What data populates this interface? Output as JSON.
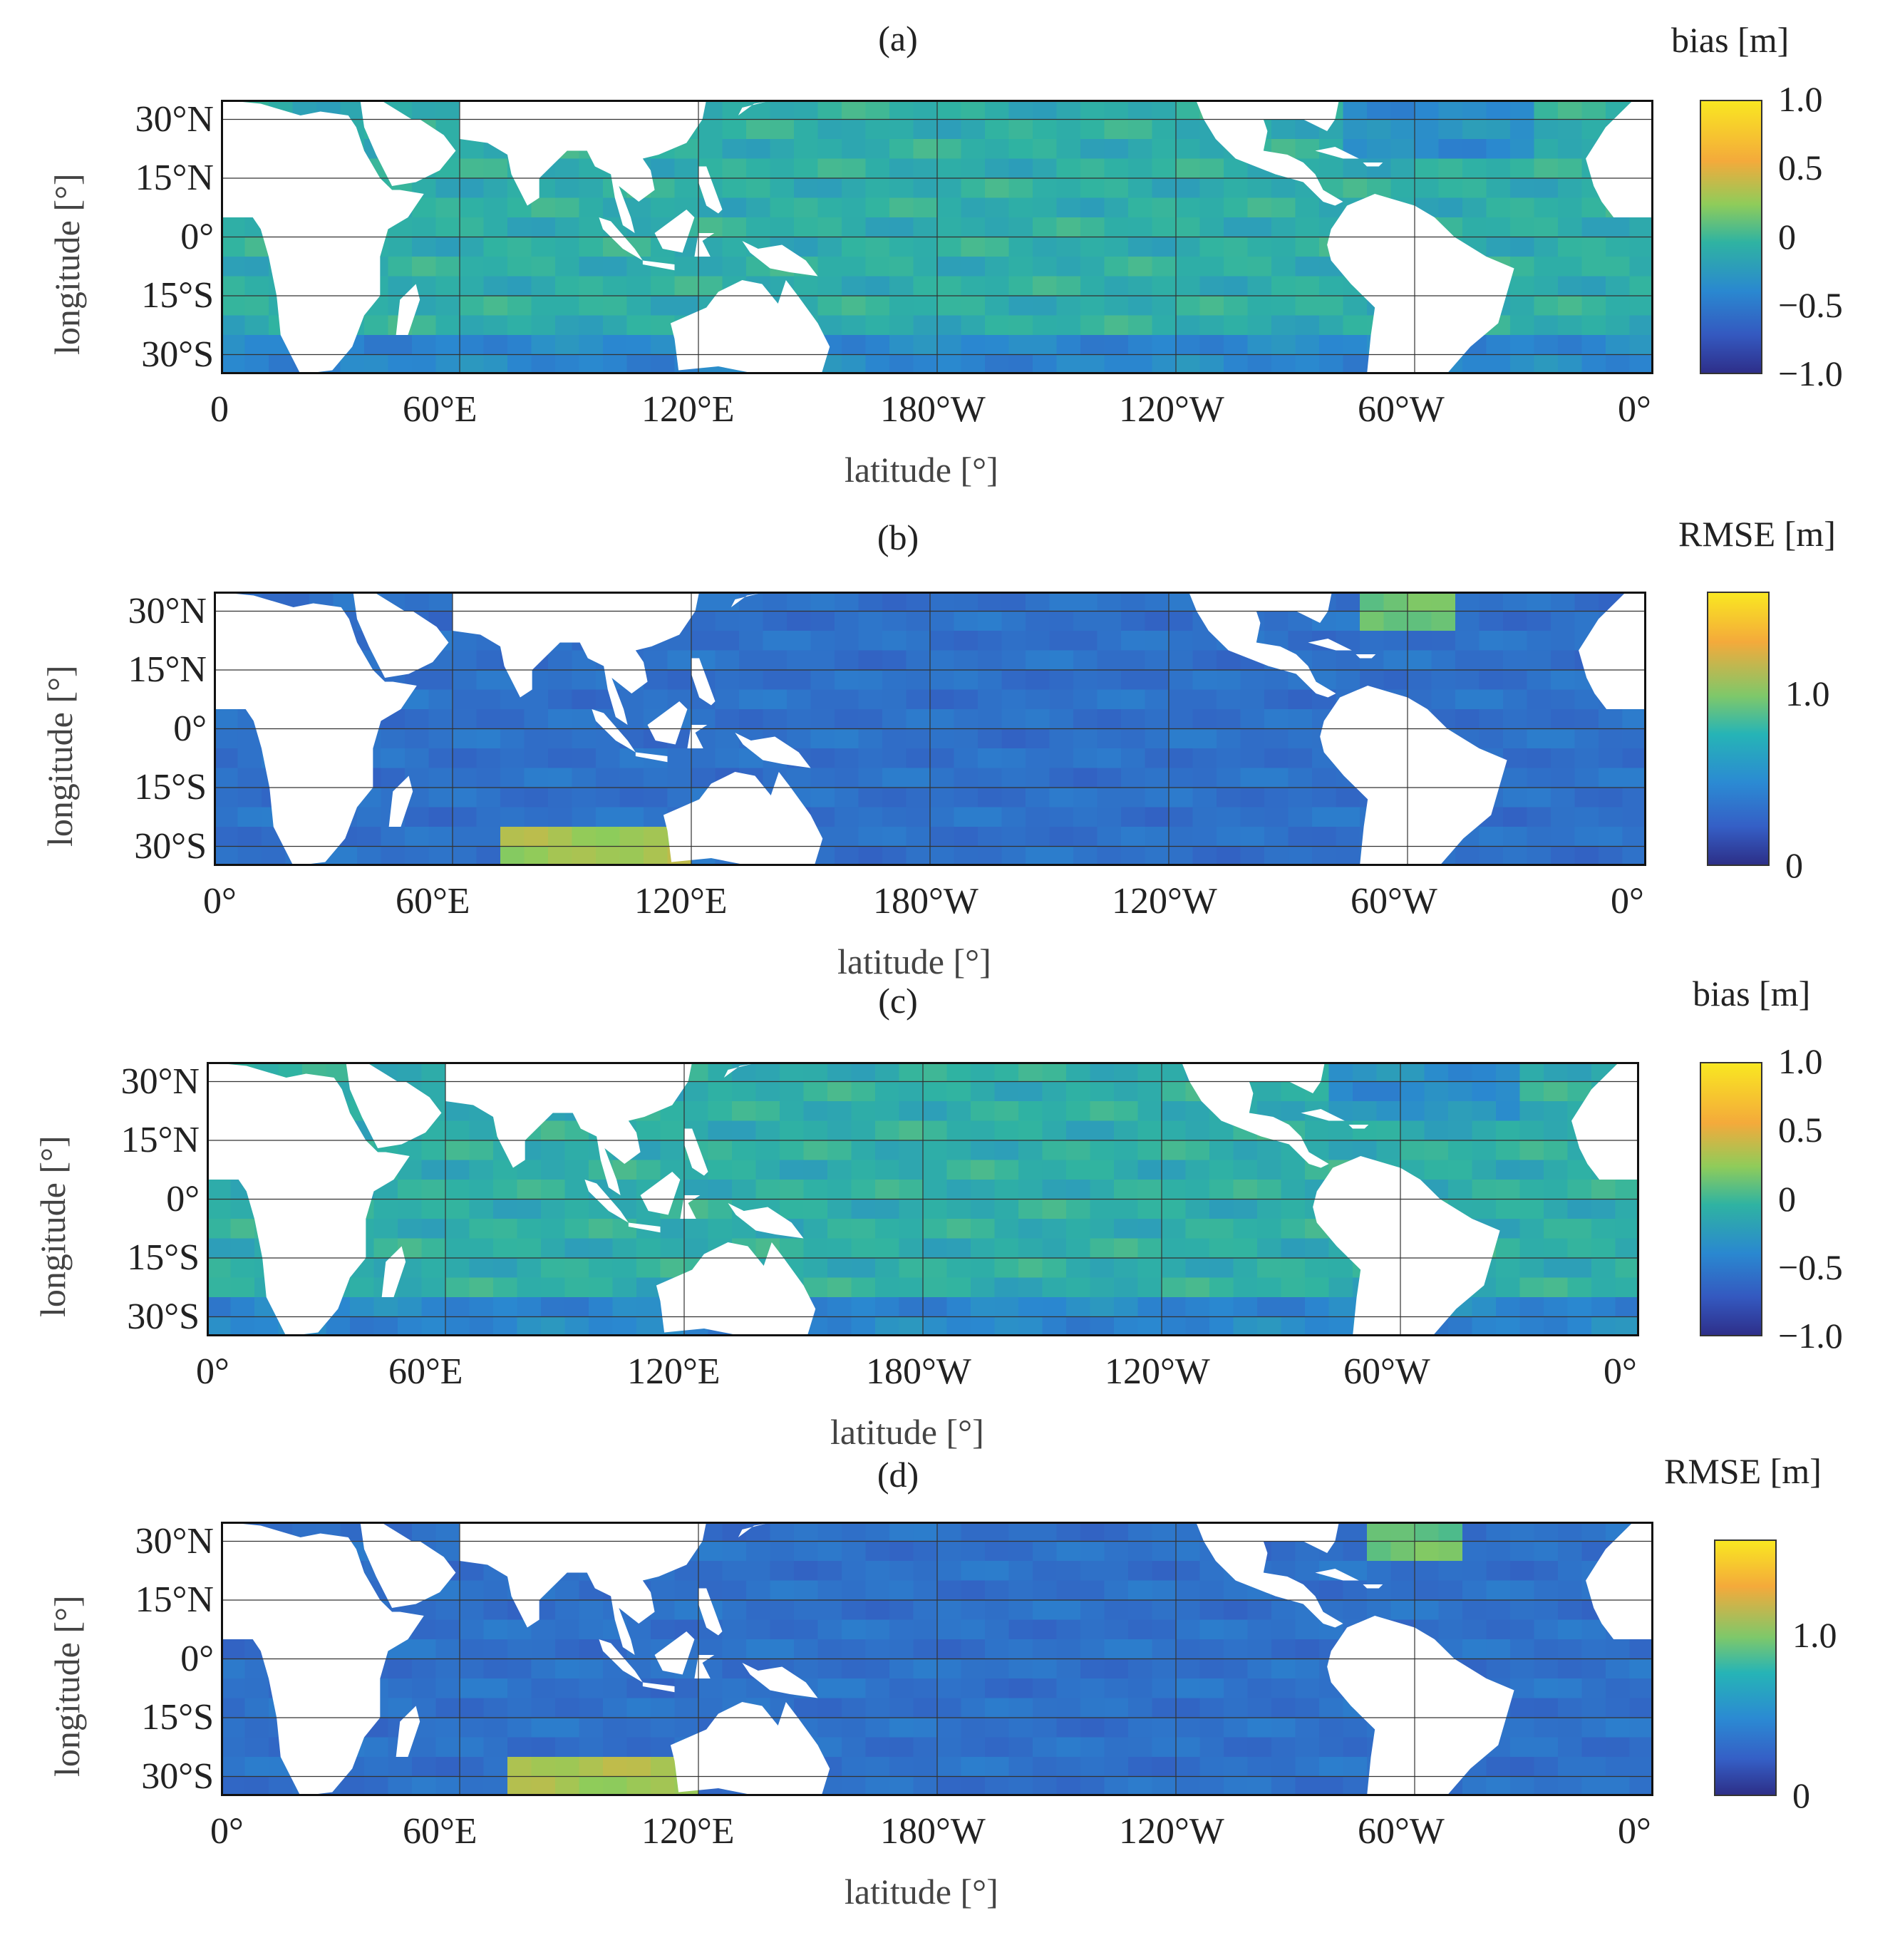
{
  "chart_data": [
    {
      "type": "heatmap",
      "panel_label": "(a)",
      "colorbar_title": "bias [m]",
      "colorbar_ticks": [
        "1.0",
        "0.5",
        "0",
        "−0.5",
        "−1.0"
      ],
      "colorbar_range": [
        -1.0,
        1.0
      ],
      "xlabel": "latitude [°]",
      "ylabel": "longitude [°]",
      "x_ticks": [
        "0",
        "60°E",
        "120°E",
        "180°W",
        "120°W",
        "60°W",
        "0°"
      ],
      "y_ticks": [
        "30°N",
        "15°N",
        "0°",
        "15°S",
        "30°S"
      ],
      "x_range_deg": [
        0,
        360
      ],
      "y_range_deg": [
        -35,
        35
      ],
      "grid": true,
      "metric": "bias"
    },
    {
      "type": "heatmap",
      "panel_label": "(b)",
      "colorbar_title": "RMSE [m]",
      "colorbar_ticks": [
        "1.0",
        "0"
      ],
      "colorbar_range": [
        0,
        1.6
      ],
      "xlabel": "latitude [°]",
      "ylabel": "longitude [°]",
      "x_ticks": [
        "0°",
        "60°E",
        "120°E",
        "180°W",
        "120°W",
        "60°W",
        "0°"
      ],
      "y_ticks": [
        "30°N",
        "15°N",
        "0°",
        "15°S",
        "30°S"
      ],
      "x_range_deg": [
        0,
        360
      ],
      "y_range_deg": [
        -35,
        35
      ],
      "grid": true,
      "metric": "rmse"
    },
    {
      "type": "heatmap",
      "panel_label": "(c)",
      "colorbar_title": "bias [m]",
      "colorbar_ticks": [
        "1.0",
        "0.5",
        "0",
        "−0.5",
        "−1.0"
      ],
      "colorbar_range": [
        -1.0,
        1.0
      ],
      "xlabel": "latitude [°]",
      "ylabel": "longitude [°]",
      "x_ticks": [
        "0°",
        "60°E",
        "120°E",
        "180°W",
        "120°W",
        "60°W",
        "0°"
      ],
      "y_ticks": [
        "30°N",
        "15°N",
        "0°",
        "15°S",
        "30°S"
      ],
      "x_range_deg": [
        0,
        360
      ],
      "y_range_deg": [
        -35,
        35
      ],
      "grid": true,
      "metric": "bias"
    },
    {
      "type": "heatmap",
      "panel_label": "(d)",
      "colorbar_title": "RMSE [m]",
      "colorbar_ticks": [
        "1.0",
        "0"
      ],
      "colorbar_range": [
        0,
        1.6
      ],
      "xlabel": "latitude [°]",
      "ylabel": "longitude [°]",
      "x_ticks": [
        "0°",
        "60°E",
        "120°E",
        "180°W",
        "120°W",
        "60°W",
        "0°"
      ],
      "y_ticks": [
        "30°N",
        "15°N",
        "0°",
        "15°S",
        "30°S"
      ],
      "x_range_deg": [
        0,
        360
      ],
      "y_range_deg": [
        -35,
        35
      ],
      "grid": true,
      "metric": "rmse"
    }
  ],
  "colors": {
    "ocean_bias": "#2aa7b8",
    "ocean_rmse": "#3a62c2",
    "land": "#ffffff",
    "hot": "#f4aa3b",
    "low": "#2e2f8a"
  }
}
